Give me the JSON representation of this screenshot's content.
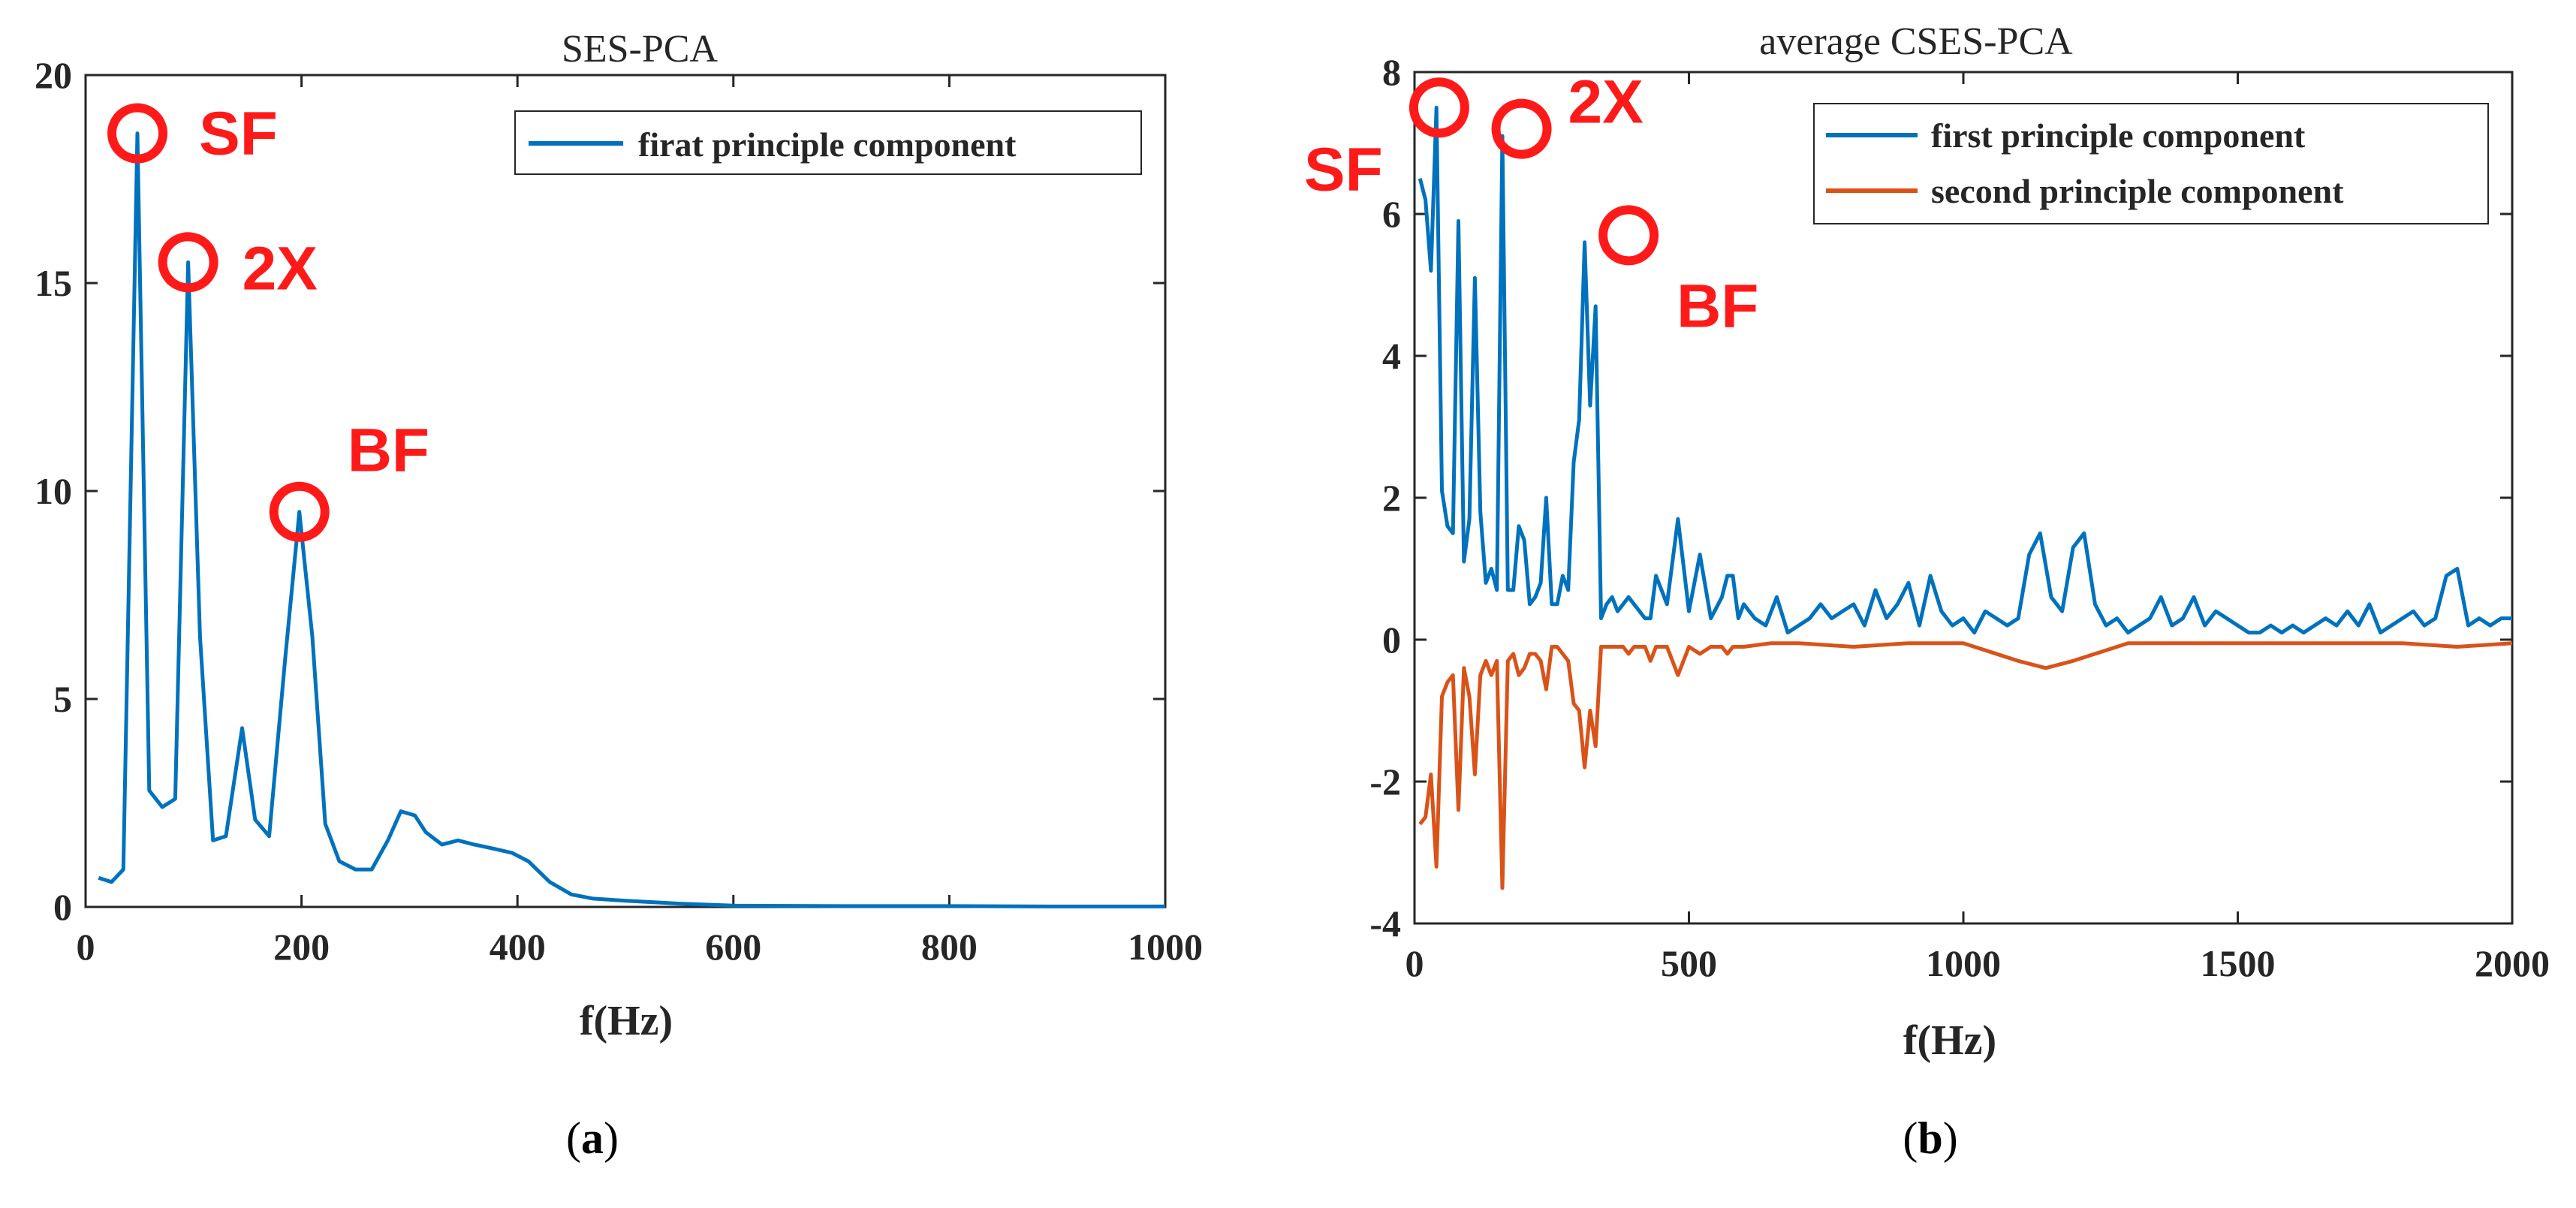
{
  "chart_data": [
    {
      "type": "line",
      "title": "SES-PCA",
      "xlabel": "f(Hz)",
      "ylabel": "",
      "caption": "a",
      "xlim": [
        0,
        1000
      ],
      "ylim": [
        0,
        20
      ],
      "xticks": [
        0,
        200,
        400,
        600,
        800,
        1000
      ],
      "yticks": [
        0,
        5,
        10,
        15,
        20
      ],
      "legend": "top-right",
      "series": [
        {
          "name": "firat principle component",
          "color": "#0072bd",
          "x": [
            12,
            24,
            35,
            48,
            59,
            71,
            83,
            95,
            106,
            118,
            130,
            145,
            157,
            170,
            185,
            198,
            210,
            222,
            235,
            250,
            265,
            280,
            292,
            305,
            315,
            330,
            345,
            360,
            378,
            395,
            410,
            430,
            450,
            470,
            500,
            550,
            600,
            700,
            800,
            900,
            1000
          ],
          "values": [
            0.7,
            0.6,
            0.9,
            18.6,
            2.8,
            2.4,
            2.6,
            15.5,
            6.5,
            1.6,
            1.7,
            4.3,
            2.1,
            1.7,
            6.0,
            9.5,
            6.5,
            2.0,
            1.1,
            0.9,
            0.9,
            1.6,
            2.3,
            2.2,
            1.8,
            1.5,
            1.6,
            1.5,
            1.4,
            1.3,
            1.1,
            0.6,
            0.3,
            0.2,
            0.15,
            0.08,
            0.03,
            0.02,
            0.02,
            0.01,
            0.01
          ]
        }
      ],
      "annotations": [
        {
          "label": "SF",
          "x": 48,
          "y": 18.6
        },
        {
          "label": "2X",
          "x": 95,
          "y": 15.5
        },
        {
          "label": "BF",
          "x": 198,
          "y": 9.5
        }
      ]
    },
    {
      "type": "line",
      "title": "average CSES-PCA",
      "xlabel": "f(Hz)",
      "ylabel": "",
      "caption": "b",
      "xlim": [
        0,
        2000
      ],
      "ylim": [
        -4,
        8
      ],
      "xticks": [
        0,
        500,
        1000,
        1500,
        2000
      ],
      "yticks": [
        -4,
        -2,
        0,
        2,
        4,
        6,
        8
      ],
      "legend": "top-right",
      "series": [
        {
          "name": "first principle component",
          "color": "#0072bd",
          "x": [
            10,
            20,
            30,
            40,
            50,
            60,
            70,
            80,
            90,
            100,
            110,
            120,
            130,
            140,
            150,
            160,
            170,
            180,
            190,
            200,
            210,
            220,
            230,
            240,
            250,
            260,
            270,
            280,
            290,
            300,
            310,
            320,
            330,
            340,
            350,
            360,
            370,
            380,
            390,
            400,
            410,
            420,
            430,
            440,
            460,
            480,
            500,
            520,
            540,
            560,
            570,
            580,
            590,
            600,
            620,
            640,
            660,
            680,
            700,
            720,
            740,
            760,
            780,
            800,
            820,
            840,
            860,
            880,
            900,
            920,
            940,
            960,
            980,
            1000,
            1020,
            1040,
            1060,
            1080,
            1100,
            1120,
            1140,
            1160,
            1180,
            1200,
            1220,
            1240,
            1260,
            1280,
            1300,
            1320,
            1340,
            1360,
            1380,
            1400,
            1420,
            1440,
            1460,
            1480,
            1500,
            1520,
            1540,
            1560,
            1580,
            1600,
            1620,
            1640,
            1660,
            1680,
            1700,
            1720,
            1740,
            1760,
            1780,
            1800,
            1820,
            1840,
            1860,
            1880,
            1900,
            1920,
            1940,
            1960,
            1980,
            2000
          ],
          "values": [
            6.5,
            6.2,
            5.2,
            7.5,
            2.1,
            1.6,
            1.5,
            5.9,
            1.1,
            1.7,
            5.1,
            1.8,
            0.8,
            1.0,
            0.7,
            7.1,
            0.7,
            0.7,
            1.6,
            1.4,
            0.5,
            0.6,
            0.8,
            2.0,
            0.5,
            0.5,
            0.9,
            0.7,
            2.5,
            3.1,
            5.6,
            3.3,
            4.7,
            0.3,
            0.5,
            0.6,
            0.4,
            0.5,
            0.6,
            0.5,
            0.4,
            0.3,
            0.3,
            0.9,
            0.5,
            1.7,
            0.4,
            1.2,
            0.3,
            0.6,
            0.9,
            0.9,
            0.3,
            0.5,
            0.3,
            0.2,
            0.6,
            0.1,
            0.2,
            0.3,
            0.5,
            0.3,
            0.4,
            0.5,
            0.2,
            0.7,
            0.3,
            0.5,
            0.8,
            0.2,
            0.9,
            0.4,
            0.2,
            0.3,
            0.1,
            0.4,
            0.3,
            0.2,
            0.3,
            1.2,
            1.5,
            0.6,
            0.4,
            1.3,
            1.5,
            0.5,
            0.2,
            0.3,
            0.1,
            0.2,
            0.3,
            0.6,
            0.2,
            0.3,
            0.6,
            0.2,
            0.4,
            0.3,
            0.2,
            0.1,
            0.1,
            0.2,
            0.1,
            0.2,
            0.1,
            0.2,
            0.3,
            0.2,
            0.4,
            0.2,
            0.5,
            0.1,
            0.2,
            0.3,
            0.4,
            0.2,
            0.3,
            0.9,
            1.0,
            0.2,
            0.3,
            0.2,
            0.3,
            0.3
          ],
          "note": "dense values approximated from plot"
        },
        {
          "name": "second principle component",
          "color": "#d95319",
          "x": [
            10,
            20,
            30,
            40,
            50,
            60,
            70,
            80,
            90,
            100,
            110,
            120,
            130,
            140,
            150,
            160,
            170,
            180,
            190,
            200,
            210,
            220,
            230,
            240,
            250,
            260,
            270,
            280,
            290,
            300,
            310,
            320,
            330,
            340,
            350,
            360,
            370,
            380,
            390,
            400,
            410,
            420,
            430,
            440,
            460,
            480,
            500,
            520,
            540,
            560,
            570,
            580,
            600,
            650,
            700,
            800,
            900,
            1000,
            1100,
            1150,
            1200,
            1300,
            1400,
            1500,
            1600,
            1700,
            1800,
            1900,
            2000
          ],
          "values": [
            -2.6,
            -2.5,
            -1.9,
            -3.2,
            -0.8,
            -0.6,
            -0.5,
            -2.4,
            -0.4,
            -0.8,
            -1.9,
            -0.5,
            -0.3,
            -0.5,
            -0.3,
            -3.5,
            -0.3,
            -0.2,
            -0.5,
            -0.4,
            -0.2,
            -0.2,
            -0.3,
            -0.7,
            -0.1,
            -0.1,
            -0.2,
            -0.3,
            -0.9,
            -1.0,
            -1.8,
            -1.0,
            -1.5,
            -0.1,
            -0.1,
            -0.1,
            -0.1,
            -0.1,
            -0.2,
            -0.1,
            -0.1,
            -0.1,
            -0.3,
            -0.1,
            -0.1,
            -0.5,
            -0.1,
            -0.2,
            -0.1,
            -0.1,
            -0.2,
            -0.1,
            -0.1,
            -0.05,
            -0.05,
            -0.1,
            -0.05,
            -0.05,
            -0.3,
            -0.4,
            -0.3,
            -0.05,
            -0.05,
            -0.05,
            -0.05,
            -0.05,
            -0.05,
            -0.1,
            -0.05
          ],
          "note": "dense values approximated from plot"
        }
      ],
      "annotations": [
        {
          "label": "SF",
          "x": 45,
          "y": 7.5
        },
        {
          "label": "2X",
          "x": 195,
          "y": 7.2
        },
        {
          "label": "BF",
          "x": 390,
          "y": 5.7
        }
      ]
    }
  ]
}
